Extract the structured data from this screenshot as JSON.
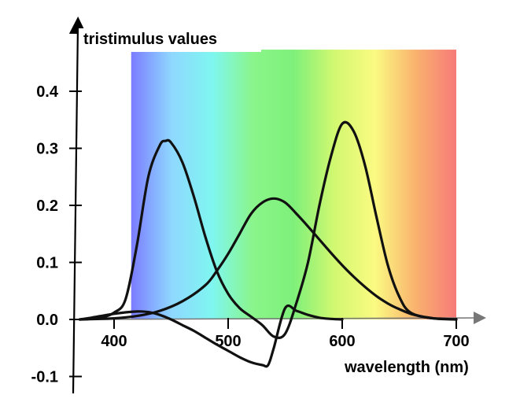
{
  "chart_data": {
    "type": "line",
    "ylabel": "tristimulus values",
    "xlabel": "wavelength (nm)",
    "xlim": [
      370,
      720
    ],
    "ylim": [
      -0.115,
      0.5
    ],
    "x_ticks": [
      "400",
      "500",
      "600",
      "700"
    ],
    "y_ticks": [
      "0.4",
      "0.3",
      "0.2",
      "0.1",
      "0.0",
      "-0.1"
    ],
    "spectrum_band": {
      "x_start": 415,
      "x_end": 700,
      "y_top": 0.473
    },
    "spectrum_colors": [
      "#7b7cff",
      "#8fd8ff",
      "#7ff6f0",
      "#8af58a",
      "#7ef07a",
      "#d2f870",
      "#fbfa82",
      "#f9b26e",
      "#f77a78"
    ],
    "line_color": "#111111",
    "series": [
      {
        "x": [
          370,
          380,
          390,
          400,
          410,
          420,
          430,
          440,
          445,
          450,
          460,
          470,
          480,
          490,
          500,
          510,
          520,
          530,
          540,
          550,
          560,
          570,
          580,
          590,
          600,
          610,
          620,
          630,
          640,
          650,
          660,
          680,
          700
        ],
        "values": [
          0,
          0.001,
          0.004,
          0.012,
          0.035,
          0.13,
          0.25,
          0.305,
          0.313,
          0.31,
          0.275,
          0.215,
          0.145,
          0.085,
          0.045,
          0.02,
          0.005,
          -0.01,
          -0.03,
          -0.025,
          0.03,
          0.1,
          0.2,
          0.285,
          0.343,
          0.33,
          0.27,
          0.18,
          0.095,
          0.04,
          0.012,
          0.002,
          0.0
        ]
      },
      {
        "x": [
          370,
          400,
          420,
          440,
          460,
          480,
          490,
          500,
          510,
          520,
          530,
          540,
          550,
          560,
          570,
          580,
          590,
          600,
          610,
          620,
          630,
          640,
          650,
          660,
          670,
          680,
          690,
          700
        ],
        "values": [
          0,
          0.002,
          0.006,
          0.015,
          0.032,
          0.06,
          0.085,
          0.115,
          0.15,
          0.185,
          0.205,
          0.212,
          0.205,
          0.185,
          0.163,
          0.14,
          0.117,
          0.095,
          0.075,
          0.057,
          0.041,
          0.028,
          0.018,
          0.01,
          0.005,
          0.002,
          0.001,
          0.0
        ]
      },
      {
        "x": [
          370,
          380,
          400,
          420,
          430,
          440,
          450,
          460,
          470,
          480,
          490,
          500,
          510,
          520,
          530,
          535,
          540,
          550,
          560,
          570,
          580,
          590,
          600
        ],
        "values": [
          0,
          0.003,
          0.01,
          0.014,
          0.013,
          0.008,
          0.0,
          -0.01,
          -0.02,
          -0.032,
          -0.044,
          -0.055,
          -0.066,
          -0.075,
          -0.08,
          -0.08,
          -0.05,
          0.02,
          0.015,
          0.008,
          0.003,
          0.001,
          0.0
        ]
      }
    ]
  }
}
